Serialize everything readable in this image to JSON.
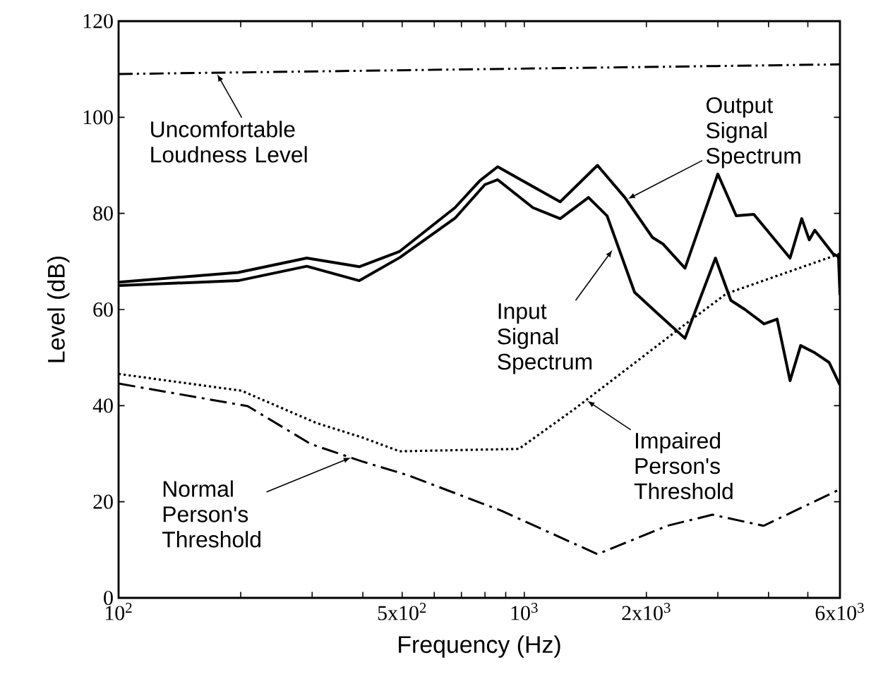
{
  "chart_data": {
    "type": "line",
    "xlabel": "Frequency (Hz)",
    "ylabel": "Level (dB)",
    "log": "x",
    "grid": false,
    "xlim": [
      100,
      6000
    ],
    "ylim": [
      0,
      120
    ],
    "xticks": [
      {
        "value": 100,
        "label": "10$^{2}$"
      },
      {
        "value": 200,
        "label": null
      },
      {
        "value": 300,
        "label": null
      },
      {
        "value": 400,
        "label": null
      },
      {
        "value": 500,
        "label": "5x10$^{2}$"
      },
      {
        "value": 600,
        "label": null
      },
      {
        "value": 700,
        "label": null
      },
      {
        "value": 800,
        "label": null
      },
      {
        "value": 900,
        "label": null
      },
      {
        "value": 1000,
        "label": "10$^{3}$"
      },
      {
        "value": 2000,
        "label": "2x10$^{3}$"
      },
      {
        "value": 3000,
        "label": null
      },
      {
        "value": 4000,
        "label": null
      },
      {
        "value": 5000,
        "label": null
      },
      {
        "value": 6000,
        "label": "6x10$^{3}$"
      }
    ],
    "yticks": [
      0,
      20,
      40,
      60,
      80,
      100,
      120
    ],
    "series": [
      {
        "color": "#000000",
        "line_style": "dashdotdot",
        "x": [
          100,
          6000
        ],
        "values": [
          109,
          111
        ]
      },
      {
        "color": "#000000",
        "line_style": "solid",
        "x": [
          100,
          197,
          291,
          392,
          493,
          675,
          777,
          860,
          1226,
          1515,
          1770,
          2070,
          2200,
          2490,
          3000,
          3330,
          3680,
          4520,
          4830,
          5040,
          5200,
          5770,
          5950,
          6000
        ],
        "values": [
          65.7,
          67.7,
          70.7,
          68.9,
          72.1,
          81.2,
          86.8,
          89.7,
          82.4,
          90,
          83.3,
          75,
          73.6,
          68.6,
          88.2,
          79.5,
          79.8,
          70.7,
          78.9,
          74.5,
          76.5,
          71.6,
          71,
          63
        ]
      },
      {
        "color": "#000000",
        "line_style": "solid",
        "x": [
          100,
          197,
          291,
          392,
          493,
          675,
          800,
          860,
          1050,
          1226,
          1440,
          1600,
          1870,
          2130,
          2490,
          2960,
          3230,
          3500,
          3900,
          4200,
          4520,
          4800,
          5200,
          5640,
          6000
        ],
        "values": [
          65,
          66,
          69,
          66,
          70.8,
          79,
          86,
          87,
          81.2,
          78.9,
          83.3,
          79.5,
          63.6,
          59.2,
          54,
          70.7,
          61.9,
          60,
          57,
          58,
          45.2,
          52.5,
          51,
          49,
          44.3
        ]
      },
      {
        "color": "#000000",
        "line_style": "dotted",
        "x": [
          100,
          201,
          307,
          398,
          493,
          970,
          1330,
          2490,
          3150,
          6000
        ],
        "values": [
          46.6,
          43.1,
          36.4,
          33.4,
          30.5,
          31,
          39.3,
          56.9,
          63.3,
          71.6
        ]
      },
      {
        "color": "#000000",
        "line_style": "dashdot",
        "x": [
          100,
          208,
          298,
          398,
          517,
          874,
          1515,
          2250,
          2910,
          3890,
          6000
        ],
        "values": [
          44.6,
          39.9,
          32,
          28.4,
          25.5,
          18.2,
          9.1,
          15,
          17.3,
          15,
          22.6
        ]
      }
    ],
    "annotations": [
      {
        "text": "Uncomfortable Loudness Level",
        "x": 175,
        "y": 109
      },
      {
        "text": "Output Signal Spectrum",
        "x": 1800,
        "y": 83
      },
      {
        "text": "Input Signal Spectrum",
        "x": 1650,
        "y": 72.4
      },
      {
        "text": "Impaired Person's Threshold",
        "x": 1430,
        "y": 41
      },
      {
        "text": "Normal Person's Threshold",
        "x": 374,
        "y": 29.2
      }
    ]
  }
}
